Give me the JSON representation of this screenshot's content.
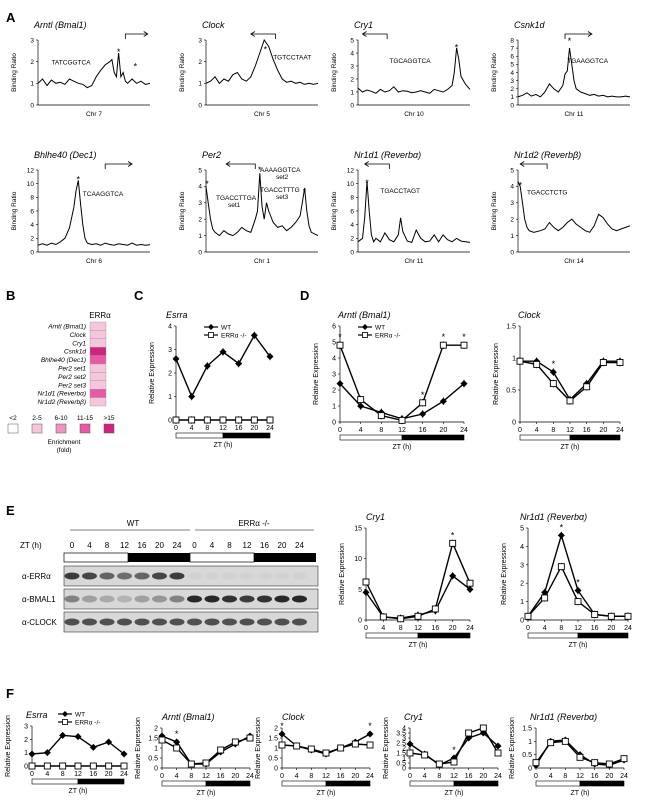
{
  "panel_letters": [
    "A",
    "B",
    "C",
    "D",
    "E",
    "F"
  ],
  "A": {
    "ylabel": "Binding Ratio",
    "plots": [
      {
        "title": "Arntl (Bmal1)",
        "chr": "Chr 7",
        "ymax": 3,
        "yticks": [
          0,
          1,
          2,
          3
        ],
        "seqs": [
          "TATCGGTCA"
        ],
        "x": [
          0,
          4,
          8,
          12,
          16,
          20,
          24,
          28,
          32,
          36,
          40,
          44,
          48,
          52,
          56,
          60,
          64,
          66,
          68,
          70,
          72,
          74,
          76,
          78,
          80,
          84,
          88,
          92,
          96,
          100
        ],
        "y": [
          1.0,
          1.2,
          0.9,
          1.15,
          1.0,
          1.05,
          0.95,
          1.2,
          1.1,
          1.0,
          0.95,
          0.8,
          0.9,
          1.3,
          1.6,
          1.85,
          2.0,
          2.1,
          1.5,
          1.3,
          2.4,
          1.3,
          1.5,
          1.1,
          1.0,
          1.2,
          1.0,
          1.1,
          0.95,
          1.0
        ]
      },
      {
        "title": "Clock",
        "chr": "Chr 5",
        "ymax": 3,
        "yticks": [
          0,
          1,
          2,
          3
        ],
        "seqs": [
          "TGTCCTAAT"
        ],
        "x": [
          0,
          4,
          8,
          12,
          16,
          20,
          24,
          28,
          32,
          36,
          40,
          44,
          48,
          52,
          56,
          60,
          64,
          68,
          72,
          76,
          80,
          84,
          88,
          92,
          96,
          100
        ],
        "y": [
          1.0,
          1.1,
          1.3,
          1.0,
          1.2,
          1.1,
          1.4,
          1.5,
          1.2,
          1.1,
          1.3,
          1.8,
          2.4,
          3.0,
          2.7,
          2.1,
          1.6,
          1.2,
          1.05,
          1.1,
          1.0,
          1.05,
          0.95,
          1.0,
          0.95,
          1.0
        ]
      },
      {
        "title": "Cry1",
        "chr": "Chr 10",
        "ymax": 5,
        "yticks": [
          0,
          1,
          2,
          3,
          4,
          5
        ],
        "seqs": [
          "TGCAGGTCA"
        ],
        "x": [
          0,
          4,
          8,
          12,
          16,
          20,
          24,
          28,
          32,
          36,
          40,
          44,
          48,
          52,
          56,
          60,
          64,
          68,
          72,
          76,
          80,
          84,
          86,
          88,
          90,
          92,
          96,
          100
        ],
        "y": [
          1.3,
          1.0,
          1.15,
          1.05,
          0.9,
          1.2,
          1.0,
          1.1,
          1.4,
          1.0,
          1.1,
          1.05,
          0.95,
          1.0,
          1.1,
          1.0,
          0.9,
          1.2,
          1.1,
          1.0,
          1.2,
          1.5,
          2.5,
          4.4,
          3.5,
          2.2,
          1.6,
          1.2
        ]
      },
      {
        "title": "Csnk1d",
        "chr": "Chr 11",
        "ymax": 8,
        "yticks": [
          0,
          1,
          2,
          3,
          4,
          5,
          6,
          7,
          8
        ],
        "seqs": [
          "TGAAGGTCA"
        ],
        "x": [
          0,
          4,
          8,
          12,
          16,
          20,
          24,
          28,
          32,
          36,
          40,
          42,
          44,
          46,
          48,
          50,
          52,
          56,
          60,
          64,
          68,
          72,
          76,
          80,
          84,
          88,
          92,
          96,
          100
        ],
        "y": [
          1.0,
          1.2,
          1.5,
          1.1,
          1.3,
          1.0,
          1.6,
          2.6,
          2.0,
          1.6,
          2.4,
          3.8,
          4.2,
          7.0,
          5.0,
          3.0,
          2.0,
          1.6,
          1.4,
          1.2,
          1.3,
          1.1,
          1.2,
          1.0,
          1.1,
          1.0,
          1.0,
          1.1,
          1.0
        ]
      },
      {
        "title": "Bhlhe40 (Dec1)",
        "chr": "Chr 6",
        "ymax": 12,
        "yticks": [
          0,
          2,
          4,
          6,
          8,
          10,
          12
        ],
        "seqs": [
          "TCAAGGTCA"
        ],
        "x": [
          0,
          4,
          8,
          12,
          16,
          20,
          24,
          28,
          32,
          34,
          36,
          38,
          40,
          42,
          44,
          48,
          52,
          56,
          60,
          64,
          68,
          72,
          76,
          80,
          84,
          88,
          92,
          96,
          100
        ],
        "y": [
          1.0,
          1.2,
          1.0,
          1.3,
          1.1,
          1.5,
          2.0,
          3.5,
          6.5,
          9.0,
          10.5,
          7.0,
          4.0,
          2.0,
          1.3,
          1.1,
          1.2,
          1.0,
          1.3,
          1.1,
          1.0,
          1.2,
          1.1,
          1.0,
          1.3,
          1.0,
          1.1,
          1.0,
          1.05
        ]
      },
      {
        "title": "Per2",
        "chr": "Chr 1",
        "ymax": 5,
        "yticks": [
          0,
          1,
          2,
          3,
          4,
          5
        ],
        "seqs": [
          "TGACCTTGA",
          "set1",
          "AAAAGGTCA",
          "set2",
          "TGACCTTTG",
          "set3"
        ],
        "x": [
          0,
          2,
          4,
          6,
          8,
          12,
          16,
          20,
          24,
          28,
          32,
          36,
          40,
          44,
          46,
          48,
          50,
          52,
          54,
          56,
          60,
          64,
          68,
          72,
          76,
          80,
          84,
          86,
          88,
          90,
          92,
          94,
          100
        ],
        "y": [
          4.0,
          3.0,
          2.0,
          1.4,
          1.2,
          1.0,
          1.3,
          1.1,
          1.0,
          1.2,
          1.5,
          1.3,
          1.2,
          2.0,
          2.5,
          4.8,
          2.8,
          2.0,
          3.0,
          2.5,
          1.8,
          1.5,
          1.6,
          1.3,
          1.5,
          1.8,
          2.2,
          3.0,
          3.9,
          2.5,
          1.6,
          1.2,
          1.0
        ]
      },
      {
        "title": "Nr1d1 (Reverbα)",
        "chr": "Chr 11",
        "ymax": 12,
        "yticks": [
          0,
          2,
          4,
          6,
          8,
          10,
          12
        ],
        "seqs": [
          "TGACCTAGT"
        ],
        "x": [
          0,
          4,
          6,
          8,
          10,
          12,
          14,
          16,
          20,
          24,
          28,
          32,
          36,
          38,
          40,
          44,
          48,
          52,
          56,
          60,
          64,
          68,
          72,
          76,
          80,
          84,
          88,
          92,
          96,
          100
        ],
        "y": [
          1.5,
          2.0,
          5.0,
          10.3,
          6.0,
          2.5,
          1.5,
          2.0,
          1.5,
          2.8,
          1.8,
          1.5,
          2.5,
          5.0,
          3.0,
          1.6,
          1.4,
          3.2,
          2.0,
          1.5,
          1.6,
          2.5,
          1.5,
          2.5,
          1.8,
          1.5,
          2.0,
          1.6,
          1.5,
          1.4
        ]
      },
      {
        "title": "Nr1d2 (Reverbβ)",
        "chr": "Chr 14",
        "ymax": 5,
        "yticks": [
          0,
          1,
          2,
          3,
          4,
          5
        ],
        "seqs": [
          "TGACCTCTG"
        ],
        "x": [
          0,
          2,
          4,
          6,
          8,
          10,
          14,
          20,
          24,
          28,
          32,
          36,
          40,
          44,
          48,
          52,
          56,
          60,
          64,
          68,
          72,
          76,
          80,
          84,
          88,
          92,
          96,
          100
        ],
        "y": [
          4.3,
          4.0,
          3.0,
          2.0,
          1.5,
          1.3,
          1.2,
          1.3,
          1.4,
          1.8,
          1.5,
          1.3,
          1.5,
          1.8,
          2.0,
          1.7,
          1.5,
          1.3,
          1.2,
          1.6,
          2.3,
          2.1,
          1.7,
          1.4,
          1.3,
          1.4,
          1.5,
          1.6
        ]
      }
    ]
  },
  "B": {
    "header": "ERRα",
    "genes": [
      "Arntl (Bmal1)",
      "Clock",
      "Cry1",
      "Csnk1d",
      "Bhlhe40 (Dec1)",
      "Per2 set1",
      "Per2 set2",
      "Per2 set3",
      "Nr1d1 (Reverbα)",
      "Nr1d2 (Reverbβ)"
    ],
    "gene_colors": [
      "#f6c6dc",
      "#f6c6dc",
      "#f6c6dc",
      "#d0237f",
      "#e75aa4",
      "#f6c6dc",
      "#f6c6dc",
      "#f6c6dc",
      "#e75aa4",
      "#f6c6dc"
    ],
    "legend": [
      {
        "label": "<2",
        "color": "#ffffff"
      },
      {
        "label": "2-5",
        "color": "#f6c6dc"
      },
      {
        "label": "6-10",
        "color": "#ef93c2"
      },
      {
        "label": "11-15",
        "color": "#e75aa4"
      },
      {
        "label": ">15",
        "color": "#d0237f"
      }
    ],
    "legend_title": "Enrichment\n(fold)"
  },
  "legend_wt": "WT",
  "legend_ko": "ERRα -/-",
  "zt_label": "ZT (h)",
  "ylabel_expr": "Relative Expression",
  "zt_ticks": [
    "0",
    "4",
    "8",
    "12",
    "16",
    "20",
    "24"
  ],
  "chart_data": [
    {
      "panel": "C",
      "type": "line",
      "title": "Esrra",
      "x": [
        0,
        4,
        8,
        12,
        16,
        20,
        24
      ],
      "ylim": [
        0,
        4
      ],
      "yticks": [
        0,
        1,
        2,
        3,
        4
      ],
      "series": [
        {
          "name": "WT",
          "values": [
            2.6,
            1.0,
            2.3,
            2.9,
            2.4,
            3.6,
            2.7
          ]
        },
        {
          "name": "ERRα -/-",
          "values": [
            0,
            0,
            0,
            0,
            0,
            0,
            0
          ]
        }
      ],
      "stars": []
    },
    {
      "panel": "D",
      "type": "line",
      "title": "Arntl (Bmal1)",
      "x": [
        0,
        4,
        8,
        12,
        16,
        20,
        24
      ],
      "ylim": [
        0,
        6
      ],
      "yticks": [
        0,
        1,
        2,
        3,
        4,
        5,
        6
      ],
      "series": [
        {
          "name": "WT",
          "values": [
            2.4,
            1.0,
            0.6,
            0.2,
            0.5,
            1.3,
            2.4
          ]
        },
        {
          "name": "ERRα -/-",
          "values": [
            4.8,
            1.4,
            0.4,
            0.1,
            1.2,
            4.8,
            4.8
          ]
        }
      ],
      "stars": [
        0,
        16,
        20,
        24
      ]
    },
    {
      "panel": "D",
      "type": "line",
      "title": "Clock",
      "x": [
        0,
        4,
        8,
        12,
        16,
        20,
        24
      ],
      "ylim": [
        0,
        1.5
      ],
      "yticks": [
        0,
        0.5,
        1,
        1.5
      ],
      "series": [
        {
          "name": "WT",
          "values": [
            0.95,
            0.95,
            0.78,
            0.35,
            0.6,
            0.95,
            0.95
          ]
        },
        {
          "name": "ERRα -/-",
          "values": [
            0.95,
            0.9,
            0.6,
            0.33,
            0.55,
            0.93,
            0.93
          ]
        }
      ],
      "stars": [
        8
      ]
    },
    {
      "panel": "E",
      "type": "line",
      "title": "Cry1",
      "x": [
        0,
        4,
        8,
        12,
        16,
        20,
        24
      ],
      "ylim": [
        0,
        15
      ],
      "yticks": [
        0,
        5,
        10,
        15
      ],
      "series": [
        {
          "name": "WT",
          "values": [
            4.5,
            0.5,
            0.3,
            0.8,
            1.5,
            7.2,
            5.0
          ]
        },
        {
          "name": "ERRα -/-",
          "values": [
            6.2,
            0.5,
            0.2,
            0.6,
            1.8,
            12.5,
            6.0
          ]
        }
      ],
      "stars": [
        20
      ]
    },
    {
      "panel": "E",
      "type": "line",
      "title": "Nr1d1 (Reverbα)",
      "x": [
        0,
        4,
        8,
        12,
        16,
        20,
        24
      ],
      "ylim": [
        0,
        5
      ],
      "yticks": [
        0,
        1,
        2,
        3,
        4,
        5
      ],
      "series": [
        {
          "name": "WT",
          "values": [
            0.2,
            1.5,
            4.6,
            1.6,
            0.3,
            0.2,
            0.2
          ]
        },
        {
          "name": "ERRα -/-",
          "values": [
            0.2,
            1.2,
            2.9,
            1.0,
            0.3,
            0.2,
            0.2
          ]
        }
      ],
      "stars": [
        8,
        12
      ]
    },
    {
      "panel": "F",
      "type": "line",
      "title": "Esrra",
      "x": [
        0,
        4,
        8,
        12,
        16,
        20,
        24
      ],
      "ylim": [
        0,
        3
      ],
      "yticks": [
        0,
        1,
        2,
        3
      ],
      "series": [
        {
          "name": "WT",
          "values": [
            0.9,
            1.0,
            2.3,
            2.2,
            1.4,
            1.8,
            0.9
          ]
        },
        {
          "name": "ERRα -/-",
          "values": [
            0,
            0,
            0,
            0,
            0,
            0,
            0
          ]
        }
      ],
      "stars": []
    },
    {
      "panel": "F",
      "type": "line",
      "title": "Arntl (Bmal1)",
      "x": [
        0,
        4,
        8,
        12,
        16,
        20,
        24
      ],
      "ylim": [
        0,
        2
      ],
      "yticks": [
        0,
        0.5,
        1,
        1.5,
        2
      ],
      "series": [
        {
          "name": "WT",
          "values": [
            1.6,
            1.3,
            0.2,
            0.2,
            0.8,
            1.2,
            1.6
          ]
        },
        {
          "name": "ERRα -/-",
          "values": [
            1.4,
            1.0,
            0.2,
            0.25,
            0.9,
            1.3,
            1.5
          ]
        }
      ],
      "stars": [
        4
      ]
    },
    {
      "panel": "F",
      "type": "line",
      "title": "Clock",
      "x": [
        0,
        4,
        8,
        12,
        16,
        20,
        24
      ],
      "ylim": [
        0,
        2
      ],
      "yticks": [
        0,
        0.5,
        1,
        1.5,
        2
      ],
      "series": [
        {
          "name": "WT",
          "values": [
            1.7,
            1.1,
            0.9,
            0.7,
            1.0,
            1.3,
            1.7
          ]
        },
        {
          "name": "ERRα -/-",
          "values": [
            1.15,
            1.1,
            0.95,
            0.75,
            1.0,
            1.2,
            1.15
          ]
        }
      ],
      "stars": [
        0,
        24
      ]
    },
    {
      "panel": "F",
      "type": "line",
      "title": "Cry1",
      "x": [
        0,
        4,
        8,
        12,
        16,
        20,
        24
      ],
      "ylim": [
        0,
        4
      ],
      "yticks": [
        0,
        0.5,
        1,
        1.5,
        2,
        2.5,
        3,
        3.5,
        4
      ],
      "series": [
        {
          "name": "WT",
          "values": [
            2.4,
            1.4,
            0.3,
            1.0,
            3.0,
            3.5,
            2.2
          ]
        },
        {
          "name": "ERRα -/-",
          "values": [
            1.5,
            1.3,
            0.4,
            0.6,
            3.5,
            4.0,
            1.5
          ]
        }
      ],
      "stars": [
        12
      ]
    },
    {
      "panel": "F",
      "type": "line",
      "title": "Nr1d1 (Reverbα)",
      "x": [
        0,
        4,
        8,
        12,
        16,
        20,
        24
      ],
      "ylim": [
        0,
        1.5
      ],
      "yticks": [
        0,
        0.5,
        1,
        1.5
      ],
      "series": [
        {
          "name": "WT",
          "values": [
            0.1,
            1.0,
            1.05,
            0.5,
            0.15,
            0.1,
            0.3
          ]
        },
        {
          "name": "ERRα -/-",
          "values": [
            0.2,
            0.95,
            1.0,
            0.4,
            0.2,
            0.15,
            0.35
          ]
        }
      ],
      "stars": []
    }
  ],
  "E_blot": {
    "group_wt": "WT",
    "group_ko": "ERRα -/-",
    "zt_label": "ZT (h)",
    "lanes": [
      "0",
      "4",
      "8",
      "12",
      "16",
      "20",
      "24",
      "0",
      "4",
      "8",
      "12",
      "16",
      "20",
      "24"
    ],
    "rows": [
      "α-ERRα",
      "α-BMAL1",
      "α-CLOCK"
    ],
    "errα_intensity": [
      0.8,
      0.75,
      0.6,
      0.55,
      0.6,
      0.75,
      0.8,
      0.05,
      0.05,
      0.05,
      0.05,
      0.05,
      0.05,
      0.05
    ],
    "bmal1_intensity": [
      0.45,
      0.3,
      0.25,
      0.2,
      0.3,
      0.35,
      0.45,
      0.9,
      0.9,
      0.85,
      0.8,
      0.85,
      0.9,
      0.9
    ],
    "clock_intensity": [
      0.7,
      0.7,
      0.7,
      0.7,
      0.7,
      0.7,
      0.7,
      0.7,
      0.7,
      0.7,
      0.7,
      0.7,
      0.7,
      0.7
    ]
  }
}
